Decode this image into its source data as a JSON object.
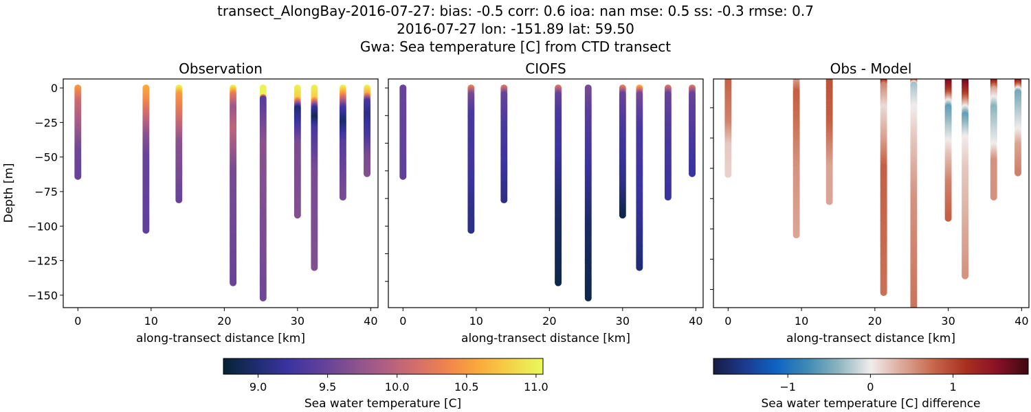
{
  "title_lines": [
    "transect_AlongBay-2016-07-27: bias: -0.5  corr: 0.6  ioa: nan  mse: 0.5  ss: -0.3  rmse: 0.7",
    "2016-07-27 lon: -151.89 lat: 59.50",
    "Gwa: Sea temperature [C] from CTD transect"
  ],
  "colormaps": {
    "thermal": [
      "#042333",
      "#1e2c6e",
      "#3a33a0",
      "#5e3f9c",
      "#85508f",
      "#ad5e84",
      "#d26d6c",
      "#f0844c",
      "#fba93c",
      "#f4d348",
      "#e8fa5b"
    ],
    "balance": [
      "#181c43",
      "#1c3a8f",
      "#0e63c2",
      "#3f8ab4",
      "#8fb6c0",
      "#f1ecec",
      "#dba898",
      "#c7664a",
      "#a8301f",
      "#8a1026",
      "#3c0912"
    ]
  },
  "chart_data": [
    {
      "type": "scatter",
      "title": "Observation",
      "xlabel": "along-transect distance [km]",
      "ylabel": "Depth [m]",
      "xlim": [
        -2.0,
        41.0
      ],
      "ylim": [
        -159,
        6.5
      ],
      "xticks": [
        0,
        10,
        20,
        30,
        40
      ],
      "yticks": [
        0,
        -25,
        -50,
        -75,
        -100,
        -125,
        -150
      ],
      "ytick_labels": [
        "0",
        "−25",
        "−50",
        "−75",
        "−100",
        "−125",
        "−150"
      ],
      "colormap": "thermal",
      "clim": [
        8.75,
        11.05
      ],
      "stations": [
        {
          "x": 0.0,
          "profile": [
            [
              0,
              10.5
            ],
            [
              -10,
              10.1
            ],
            [
              -30,
              9.8
            ],
            [
              -45,
              9.55
            ],
            [
              -64,
              9.5
            ]
          ]
        },
        {
          "x": 9.3,
          "profile": [
            [
              0,
              10.6
            ],
            [
              -10,
              10.4
            ],
            [
              -20,
              10.1
            ],
            [
              -35,
              9.7
            ],
            [
              -50,
              9.5
            ],
            [
              -103,
              9.45
            ]
          ]
        },
        {
          "x": 13.8,
          "profile": [
            [
              0,
              11.0
            ],
            [
              -5,
              10.5
            ],
            [
              -20,
              10.2
            ],
            [
              -40,
              9.7
            ],
            [
              -81,
              9.5
            ]
          ]
        },
        {
          "x": 21.2,
          "profile": [
            [
              0,
              11.0
            ],
            [
              -5,
              10.3
            ],
            [
              -15,
              9.8
            ],
            [
              -30,
              10.0
            ],
            [
              -60,
              9.6
            ],
            [
              -141,
              9.5
            ]
          ]
        },
        {
          "x": 25.3,
          "profile": [
            [
              0,
              11.0
            ],
            [
              -6,
              11.0
            ],
            [
              -8,
              9.4
            ],
            [
              -20,
              9.5
            ],
            [
              -40,
              9.7
            ],
            [
              -152,
              9.55
            ]
          ]
        },
        {
          "x": 30.0,
          "profile": [
            [
              0,
              11.0
            ],
            [
              -8,
              10.8
            ],
            [
              -15,
              9.0
            ],
            [
              -25,
              9.2
            ],
            [
              -40,
              9.6
            ],
            [
              -92,
              9.65
            ]
          ]
        },
        {
          "x": 32.3,
          "profile": [
            [
              0,
              11.0
            ],
            [
              -8,
              10.8
            ],
            [
              -15,
              9.2
            ],
            [
              -22,
              8.9
            ],
            [
              -30,
              9.3
            ],
            [
              -60,
              9.6
            ],
            [
              -130,
              9.65
            ]
          ]
        },
        {
          "x": 36.2,
          "profile": [
            [
              0,
              11.0
            ],
            [
              -5,
              10.5
            ],
            [
              -15,
              9.3
            ],
            [
              -25,
              8.95
            ],
            [
              -40,
              9.4
            ],
            [
              -79,
              9.6
            ]
          ]
        },
        {
          "x": 39.5,
          "profile": [
            [
              0,
              11.0
            ],
            [
              -5,
              10.6
            ],
            [
              -10,
              9.3
            ],
            [
              -20,
              9.1
            ],
            [
              -35,
              9.3
            ],
            [
              -50,
              9.6
            ],
            [
              -62,
              9.65
            ]
          ]
        }
      ]
    },
    {
      "type": "scatter",
      "title": "CIOFS",
      "xlabel": "along-transect distance [km]",
      "xlim": [
        -2.0,
        41.0
      ],
      "ylim": [
        -159,
        6.5
      ],
      "xticks": [
        0,
        10,
        20,
        30,
        40
      ],
      "yticks": [
        0,
        -20,
        -40,
        -60,
        -80,
        -100,
        -120,
        -140
      ],
      "colormap": "thermal",
      "clim": [
        8.75,
        11.05
      ],
      "stations": [
        {
          "x": 0.0,
          "profile": [
            [
              0,
              9.5
            ],
            [
              -64,
              9.45
            ]
          ]
        },
        {
          "x": 9.3,
          "profile": [
            [
              0,
              10.3
            ],
            [
              -5,
              9.6
            ],
            [
              -20,
              9.3
            ],
            [
              -60,
              9.25
            ],
            [
              -90,
              9.1
            ],
            [
              -103,
              9.1
            ]
          ]
        },
        {
          "x": 13.8,
          "profile": [
            [
              0,
              10.2
            ],
            [
              -5,
              9.5
            ],
            [
              -30,
              9.3
            ],
            [
              -60,
              9.2
            ],
            [
              -81,
              9.1
            ]
          ]
        },
        {
          "x": 21.2,
          "profile": [
            [
              0,
              10.2
            ],
            [
              -5,
              9.5
            ],
            [
              -20,
              9.3
            ],
            [
              -50,
              9.2
            ],
            [
              -90,
              8.95
            ],
            [
              -141,
              8.85
            ]
          ]
        },
        {
          "x": 25.3,
          "profile": [
            [
              0,
              9.6
            ],
            [
              -20,
              9.4
            ],
            [
              -60,
              9.2
            ],
            [
              -100,
              8.95
            ],
            [
              -152,
              8.85
            ]
          ]
        },
        {
          "x": 30.0,
          "profile": [
            [
              0,
              10.3
            ],
            [
              -5,
              9.5
            ],
            [
              -30,
              9.3
            ],
            [
              -70,
              9.1
            ],
            [
              -92,
              8.85
            ]
          ]
        },
        {
          "x": 32.3,
          "profile": [
            [
              0,
              10.6
            ],
            [
              -5,
              9.6
            ],
            [
              -30,
              9.3
            ],
            [
              -80,
              9.2
            ],
            [
              -130,
              9.0
            ]
          ]
        },
        {
          "x": 36.2,
          "profile": [
            [
              0,
              10.2
            ],
            [
              -5,
              9.5
            ],
            [
              -40,
              9.3
            ],
            [
              -79,
              9.2
            ]
          ]
        },
        {
          "x": 39.5,
          "profile": [
            [
              0,
              10.2
            ],
            [
              -5,
              9.5
            ],
            [
              -40,
              9.3
            ],
            [
              -62,
              9.2
            ]
          ]
        }
      ]
    },
    {
      "type": "scatter",
      "title": "Obs - Model",
      "xlabel": "along-transect distance [km]",
      "xlim": [
        -2.0,
        41.0
      ],
      "ylim": [
        -152,
        -1
      ],
      "xticks": [
        0,
        10,
        20,
        30,
        40
      ],
      "yticks": [
        -20,
        -40,
        -60,
        -80,
        -100,
        -120,
        -140
      ],
      "colormap": "balance",
      "clim": [
        -1.9,
        1.9
      ],
      "stations": [
        {
          "x": 0.0,
          "profile": [
            [
              0,
              0.8
            ],
            [
              -30,
              0.6
            ],
            [
              -45,
              0.2
            ],
            [
              -64,
              0.15
            ]
          ]
        },
        {
          "x": 9.3,
          "profile": [
            [
              0,
              0.3
            ],
            [
              -10,
              0.8
            ],
            [
              -30,
              0.7
            ],
            [
              -60,
              0.5
            ],
            [
              -104,
              0.4
            ]
          ]
        },
        {
          "x": 13.8,
          "profile": [
            [
              0,
              0.9
            ],
            [
              -30,
              0.8
            ],
            [
              -60,
              0.4
            ],
            [
              -82,
              0.4
            ]
          ]
        },
        {
          "x": 21.2,
          "profile": [
            [
              0,
              1.8
            ],
            [
              -5,
              0.6
            ],
            [
              -20,
              0.1
            ],
            [
              -40,
              0.4
            ],
            [
              -60,
              0.8
            ],
            [
              -142,
              0.7
            ]
          ]
        },
        {
          "x": 25.3,
          "profile": [
            [
              0,
              1.9
            ],
            [
              -5,
              -0.3
            ],
            [
              -20,
              0.0
            ],
            [
              -40,
              0.2
            ],
            [
              -80,
              0.5
            ],
            [
              -160,
              0.7
            ]
          ]
        },
        {
          "x": 30.0,
          "profile": [
            [
              0,
              1.9
            ],
            [
              -10,
              1.0
            ],
            [
              -20,
              -0.6
            ],
            [
              -35,
              -0.2
            ],
            [
              -50,
              0.2
            ],
            [
              -70,
              0.6
            ],
            [
              -93,
              0.8
            ]
          ]
        },
        {
          "x": 32.3,
          "profile": [
            [
              0,
              1.9
            ],
            [
              -12,
              1.0
            ],
            [
              -25,
              -0.6
            ],
            [
              -40,
              0.0
            ],
            [
              -60,
              0.2
            ],
            [
              -131,
              0.5
            ]
          ]
        },
        {
          "x": 36.2,
          "profile": [
            [
              0,
              1.9
            ],
            [
              -8,
              0.4
            ],
            [
              -20,
              -0.4
            ],
            [
              -45,
              0.0
            ],
            [
              -55,
              0.5
            ],
            [
              -79,
              0.5
            ]
          ]
        },
        {
          "x": 39.5,
          "profile": [
            [
              0,
              1.9
            ],
            [
              -5,
              0.9
            ],
            [
              -10,
              -0.5
            ],
            [
              -20,
              -0.3
            ],
            [
              -35,
              0.0
            ],
            [
              -45,
              0.4
            ],
            [
              -63,
              0.6
            ]
          ]
        }
      ]
    }
  ],
  "colorbars": [
    {
      "label": "Sea water temperature [C]",
      "colormap": "thermal",
      "range": [
        8.75,
        11.05
      ],
      "ticks": [
        9.0,
        9.5,
        10.0,
        10.5,
        11.0
      ],
      "tick_labels": [
        "9.0",
        "9.5",
        "10.0",
        "10.5",
        "11.0"
      ]
    },
    {
      "label": "Sea water temperature [C] difference",
      "colormap": "balance",
      "range": [
        -1.9,
        1.91
      ],
      "ticks": [
        -1,
        0,
        1
      ],
      "tick_labels": [
        "−1",
        "0",
        "1"
      ]
    }
  ]
}
